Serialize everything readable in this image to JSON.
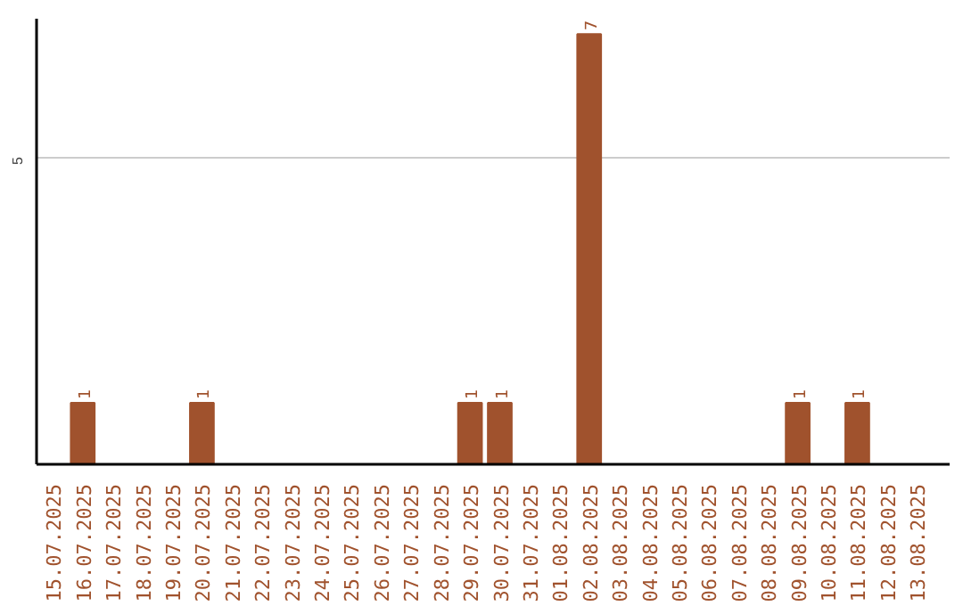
{
  "chart_data": {
    "type": "bar",
    "categories": [
      "15.07.2025",
      "16.07.2025",
      "17.07.2025",
      "18.07.2025",
      "19.07.2025",
      "20.07.2025",
      "21.07.2025",
      "22.07.2025",
      "23.07.2025",
      "24.07.2025",
      "25.07.2025",
      "26.07.2025",
      "27.07.2025",
      "28.07.2025",
      "29.07.2025",
      "30.07.2025",
      "31.07.2025",
      "01.08.2025",
      "02.08.2025",
      "03.08.2025",
      "04.08.2025",
      "05.08.2025",
      "06.08.2025",
      "07.08.2025",
      "08.08.2025",
      "09.08.2025",
      "10.08.2025",
      "11.08.2025",
      "12.08.2025",
      "13.08.2025"
    ],
    "values": [
      0,
      1,
      0,
      0,
      0,
      1,
      0,
      0,
      0,
      0,
      0,
      0,
      0,
      0,
      1,
      1,
      0,
      0,
      7,
      0,
      0,
      0,
      0,
      0,
      0,
      1,
      0,
      1,
      0,
      0
    ],
    "value_labels": [
      null,
      "1",
      null,
      null,
      null,
      "1",
      null,
      null,
      null,
      null,
      null,
      null,
      null,
      null,
      "1",
      "1",
      null,
      null,
      "7",
      null,
      null,
      null,
      null,
      null,
      null,
      "1",
      null,
      "1",
      null,
      null
    ],
    "color": "#a0522d",
    "ylim": [
      0,
      7.25
    ],
    "yticks": [
      5
    ],
    "grid": "y"
  }
}
